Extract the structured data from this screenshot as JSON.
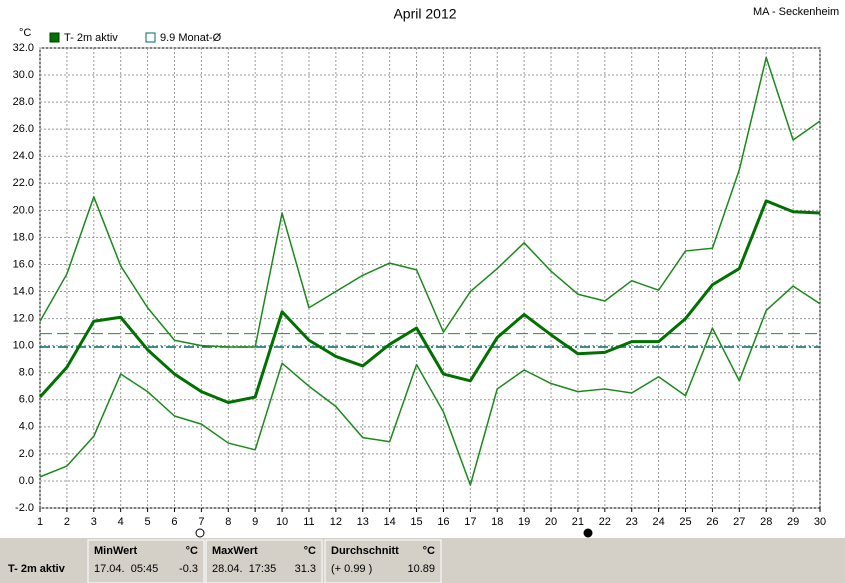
{
  "chart_data": {
    "type": "line",
    "title": "April 2012",
    "station": "MA - Seckenheim",
    "y_unit": "°C",
    "x": [
      1,
      2,
      3,
      4,
      5,
      6,
      7,
      8,
      9,
      10,
      11,
      12,
      13,
      14,
      15,
      16,
      17,
      18,
      19,
      20,
      21,
      22,
      23,
      24,
      25,
      26,
      27,
      28,
      29,
      30
    ],
    "xlim": [
      1,
      30
    ],
    "xticks": [
      1,
      2,
      3,
      4,
      5,
      6,
      7,
      8,
      9,
      10,
      11,
      12,
      13,
      14,
      15,
      16,
      17,
      18,
      19,
      20,
      21,
      22,
      23,
      24,
      25,
      26,
      27,
      28,
      29,
      30
    ],
    "ylim": [
      -2,
      32
    ],
    "yticks": [
      {
        "value": -2,
        "label": "-2.0"
      },
      {
        "value": 0,
        "label": "0.0"
      },
      {
        "value": 2,
        "label": "2.0"
      },
      {
        "value": 4,
        "label": "4.0"
      },
      {
        "value": 6,
        "label": "6.0"
      },
      {
        "value": 8,
        "label": "8.0"
      },
      {
        "value": 10,
        "label": "10.0"
      },
      {
        "value": 12,
        "label": "12.0"
      },
      {
        "value": 14,
        "label": "14.0"
      },
      {
        "value": 16,
        "label": "16.0"
      },
      {
        "value": 18,
        "label": "18.0"
      },
      {
        "value": 20,
        "label": "20.0"
      },
      {
        "value": 22,
        "label": "22.0"
      },
      {
        "value": 24,
        "label": "24.0"
      },
      {
        "value": 26,
        "label": "26.0"
      },
      {
        "value": 28,
        "label": "28.0"
      },
      {
        "value": 30,
        "label": "30.0"
      },
      {
        "value": 32,
        "label": "32.0"
      }
    ],
    "grid": true,
    "series": [
      {
        "name": "T- 2m aktiv",
        "color": "#007000",
        "width": 3,
        "values": [
          6.2,
          8.4,
          11.8,
          12.1,
          9.7,
          7.9,
          6.6,
          5.8,
          6.2,
          12.5,
          10.4,
          9.2,
          8.5,
          10.1,
          11.3,
          7.9,
          7.4,
          10.6,
          12.3,
          10.8,
          9.4,
          9.5,
          10.3,
          10.3,
          12.0,
          14.5,
          15.7,
          20.7,
          19.9,
          19.8
        ]
      },
      {
        "color": "#1a8a1a",
        "width": 1.5,
        "values": [
          11.8,
          15.3,
          21.0,
          15.9,
          12.8,
          10.4,
          10.0,
          9.9,
          9.9,
          19.8,
          12.8,
          14.0,
          15.2,
          16.1,
          15.6,
          11.0,
          14.0,
          15.7,
          17.6,
          15.5,
          13.8,
          13.3,
          14.8,
          14.1,
          17.0,
          17.2,
          23.0,
          31.3,
          25.2,
          26.6
        ]
      },
      {
        "color": "#1a8a1a",
        "width": 1.5,
        "values": [
          0.3,
          1.1,
          3.3,
          7.9,
          6.6,
          4.8,
          4.2,
          2.8,
          2.3,
          8.7,
          7.0,
          5.5,
          3.2,
          2.9,
          8.6,
          5.1,
          -0.3,
          6.8,
          8.2,
          7.2,
          6.6,
          6.8,
          6.5,
          7.7,
          6.3,
          11.3,
          7.4,
          12.6,
          14.4,
          13.1
        ]
      }
    ],
    "reference_line": {
      "name": "9.9 Monat-Ø",
      "value": 9.9,
      "color": "#006868"
    }
  },
  "stats": {
    "row_label": "T- 2m aktiv",
    "columns": [
      {
        "header": "MinWert",
        "unit": "°C",
        "detail": "17.04.  05:45",
        "value": -0.3
      },
      {
        "header": "MaxWert",
        "unit": "°C",
        "detail": "28.04.  17:35",
        "value": 31.3
      },
      {
        "header": "Durchschnitt",
        "unit": "°C",
        "detail": "(+ 0.99 )",
        "value": 10.89
      }
    ]
  }
}
